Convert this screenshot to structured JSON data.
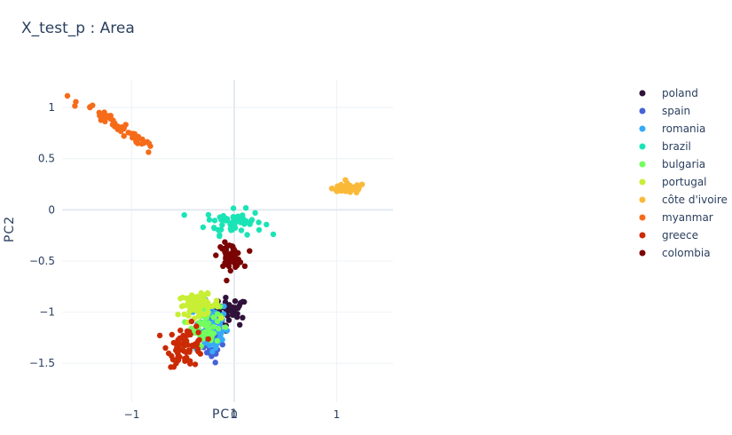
{
  "chart_data": {
    "type": "scatter",
    "title": "X_test_p : Area",
    "xlabel": "PC1",
    "ylabel": "PC2",
    "xlim": [
      -1.68,
      1.55
    ],
    "ylim": [
      -1.88,
      1.27
    ],
    "xticks": [
      -1,
      0,
      1
    ],
    "xtick_labels": [
      "−1",
      "0",
      "1"
    ],
    "yticks": [
      1,
      0.5,
      0,
      -0.5,
      -1,
      -1.5
    ],
    "ytick_labels": [
      "1",
      "0.5",
      "0",
      "−0.5",
      "−1",
      "−1.5"
    ],
    "grid": true,
    "legend_placement": "right",
    "series": [
      {
        "name": "poland",
        "color": "#30123b",
        "cluster": {
          "cx": -0.05,
          "cy": -1.0,
          "sx": 0.09,
          "sy": 0.07,
          "n": 45
        }
      },
      {
        "name": "spain",
        "color": "#4662d7",
        "cluster": {
          "cx": -0.22,
          "cy": -1.25,
          "sx": 0.05,
          "sy": 0.12,
          "n": 45
        }
      },
      {
        "name": "romania",
        "color": "#36aaf9",
        "cluster": {
          "cx": -0.22,
          "cy": -1.15,
          "sx": 0.08,
          "sy": 0.14,
          "n": 55
        }
      },
      {
        "name": "brazil",
        "color": "#1ae4b6",
        "cluster": {
          "cx": 0.0,
          "cy": -0.12,
          "sx": 0.14,
          "sy": 0.06,
          "n": 60
        }
      },
      {
        "name": "bulgaria",
        "color": "#72fe5e",
        "cluster": {
          "cx": -0.28,
          "cy": -1.12,
          "sx": 0.07,
          "sy": 0.1,
          "n": 55
        }
      },
      {
        "name": "portugal",
        "color": "#c8ef34",
        "cluster": {
          "cx": -0.35,
          "cy": -0.93,
          "sx": 0.1,
          "sy": 0.05,
          "n": 70
        }
      },
      {
        "name": "côte d'ivoire",
        "color": "#faba39",
        "cluster": {
          "cx": 1.12,
          "cy": 0.21,
          "sx": 0.08,
          "sy": 0.025,
          "n": 60
        }
      },
      {
        "name": "myanmar",
        "color": "#f66b19",
        "cluster": {
          "cx": -1.12,
          "cy": 0.8,
          "sx": 0.12,
          "sy": 0.1,
          "n": 55,
          "slope": -0.67
        }
      },
      {
        "name": "greece",
        "color": "#cb2a04",
        "cluster": {
          "cx": -0.47,
          "cy": -1.33,
          "sx": 0.09,
          "sy": 0.1,
          "n": 70
        }
      },
      {
        "name": "colombia",
        "color": "#7a0403",
        "cluster": {
          "cx": -0.04,
          "cy": -0.45,
          "sx": 0.06,
          "sy": 0.06,
          "n": 45
        }
      }
    ]
  }
}
